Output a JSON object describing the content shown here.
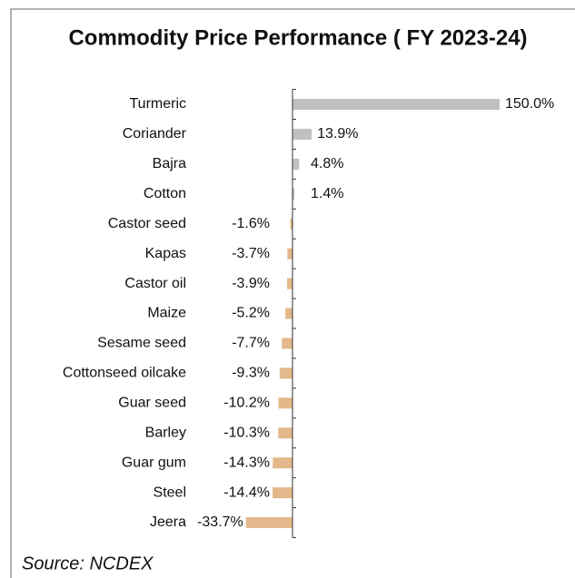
{
  "chart_data": {
    "type": "bar",
    "orientation": "horizontal",
    "title": "Commodity Price Performance ( FY 2023-24)",
    "categories": [
      "Turmeric",
      "Coriander",
      "Bajra",
      "Cotton",
      "Castor seed",
      "Kapas",
      "Castor oil",
      "Maize",
      "Sesame seed",
      "Cottonseed oilcake",
      "Guar seed",
      "Barley",
      "Guar gum",
      "Steel",
      "Jeera"
    ],
    "values": [
      150.0,
      13.9,
      4.8,
      1.4,
      -1.6,
      -3.7,
      -3.9,
      -5.2,
      -7.7,
      -9.3,
      -10.2,
      -10.3,
      -14.3,
      -14.4,
      -33.7
    ],
    "value_labels": [
      "150.0%",
      "13.9%",
      "4.8%",
      "1.4%",
      "-1.6%",
      "-3.7%",
      "-3.9%",
      "-5.2%",
      "-7.7%",
      "-9.3%",
      "-10.2%",
      "-10.3%",
      "-14.3%",
      "-14.4%",
      "-33.7%"
    ],
    "positive_color": "#c0c0c0",
    "negative_color": "#e3b88a",
    "source": "Source: NCDEX"
  }
}
